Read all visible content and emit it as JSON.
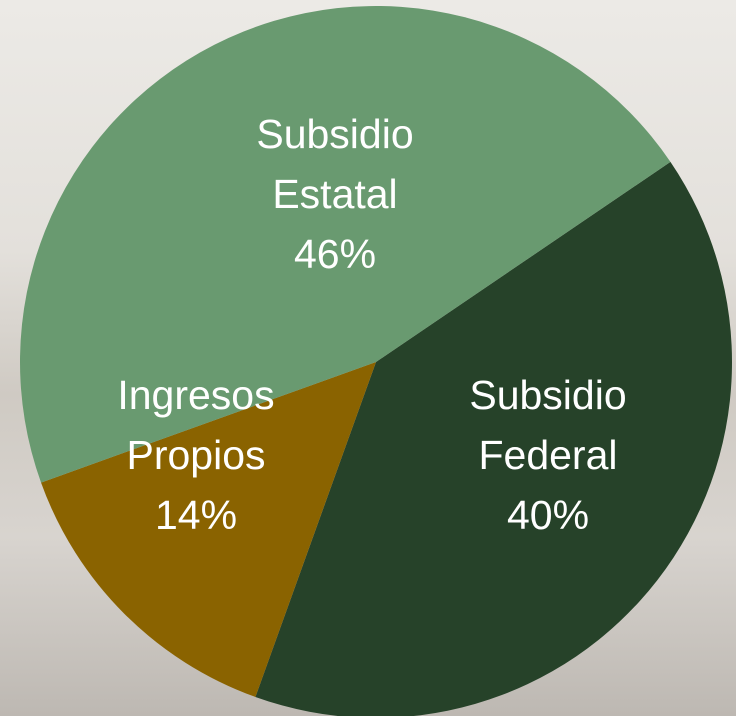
{
  "chart_data": {
    "type": "pie",
    "categories": [
      "Subsidio Federal",
      "Ingresos Propios",
      "Subsidio Estatal"
    ],
    "values": [
      40,
      14,
      46
    ],
    "value_labels": [
      "40%",
      "14%",
      "46%"
    ],
    "colors": [
      "#264229",
      "#8a6300",
      "#699a70"
    ]
  }
}
